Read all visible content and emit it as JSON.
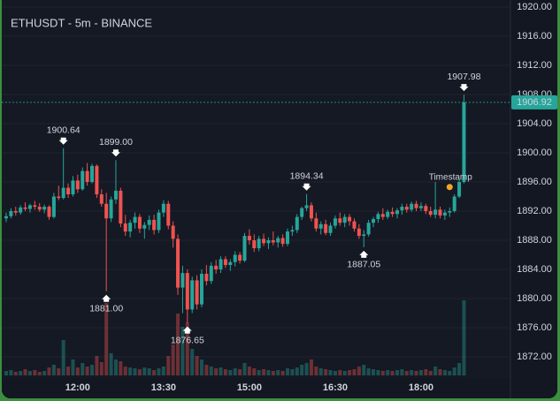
{
  "chart_data": {
    "type": "candlestick",
    "title": "ETHUSDT - 5m - BINANCE",
    "up_color": "#26a69a",
    "down_color": "#ef5350",
    "grid": true,
    "ylim": [
      1871,
      1921
    ],
    "yticks": [
      {
        "value": 1872,
        "label": "1872.00"
      },
      {
        "value": 1876,
        "label": "1876.00"
      },
      {
        "value": 1880,
        "label": "1880.00"
      },
      {
        "value": 1884,
        "label": "1884.00"
      },
      {
        "value": 1888,
        "label": "1888.00"
      },
      {
        "value": 1892,
        "label": "1892.00"
      },
      {
        "value": 1896,
        "label": "1896.00"
      },
      {
        "value": 1900,
        "label": "1900.00"
      },
      {
        "value": 1904,
        "label": "1904.00"
      },
      {
        "value": 1908,
        "label": "1908.00"
      },
      {
        "value": 1912,
        "label": "1912.00"
      },
      {
        "value": 1916,
        "label": "1916.00"
      },
      {
        "value": 1920,
        "label": "1920.00"
      }
    ],
    "categories": [
      null,
      null,
      null,
      null,
      null,
      null,
      null,
      null,
      null,
      null,
      null,
      null,
      null,
      null,
      null,
      "12:00",
      null,
      null,
      null,
      null,
      null,
      null,
      null,
      null,
      null,
      null,
      null,
      null,
      null,
      null,
      null,
      null,
      null,
      "13:30",
      null,
      null,
      null,
      null,
      null,
      null,
      null,
      null,
      null,
      null,
      null,
      null,
      null,
      null,
      null,
      null,
      null,
      "15:00",
      null,
      null,
      null,
      null,
      null,
      null,
      null,
      null,
      null,
      null,
      null,
      null,
      null,
      null,
      null,
      null,
      null,
      "16:30",
      null,
      null,
      null,
      null,
      null,
      null,
      null,
      null,
      null,
      null,
      null,
      null,
      null,
      null,
      null,
      null,
      null,
      "18:00",
      null,
      null,
      null,
      null,
      null,
      null,
      null,
      null,
      null
    ],
    "open": [
      1891.0,
      1891.3,
      1892.0,
      1891.8,
      1892.5,
      1892.3,
      1892.8,
      1892.6,
      1892.2,
      1892.6,
      1891.2,
      1894.0,
      1893.8,
      1895.2,
      1894.3,
      1896.2,
      1895.0,
      1897.5,
      1896.0,
      1898.2,
      1894.3,
      1893.0,
      1891.0,
      1893.6,
      1894.8,
      1890.3,
      1889.2,
      1890.4,
      1891.2,
      1889.6,
      1890.1,
      1890.8,
      1889.4,
      1891.8,
      1893.0,
      1890.0,
      1888.2,
      1881.5,
      1883.5,
      1878.5,
      1882.5,
      1879.2,
      1883.4,
      1882.4,
      1884.5,
      1884.0,
      1885.4,
      1884.6,
      1885.0,
      1886.0,
      1885.2,
      1888.6,
      1888.0,
      1886.9,
      1888.2,
      1887.6,
      1888.0,
      1887.7,
      1888.3,
      1887.5,
      1889.2,
      1889.4,
      1891.2,
      1892.4,
      1892.8,
      1891.0,
      1889.6,
      1890.2,
      1889.0,
      1890.0,
      1891.0,
      1890.4,
      1891.2,
      1890.6,
      1889.6,
      1888.6,
      1888.8,
      1890.4,
      1890.9,
      1891.6,
      1891.2,
      1891.9,
      1891.6,
      1892.1,
      1892.6,
      1892.2,
      1893.0,
      1892.4,
      1892.7,
      1892.0,
      1891.5,
      1892.2,
      1891.4,
      1891.8,
      1892.0,
      1894.0,
      1896.0
    ],
    "high": [
      1891.8,
      1892.4,
      1892.6,
      1892.8,
      1893.2,
      1893.0,
      1893.4,
      1893.1,
      1892.9,
      1892.8,
      1894.5,
      1895.5,
      1900.64,
      1895.8,
      1896.8,
      1897.0,
      1898.0,
      1898.6,
      1898.5,
      1898.4,
      1895.0,
      1894.5,
      1894.0,
      1899.0,
      1895.2,
      1891.5,
      1890.8,
      1891.8,
      1891.6,
      1890.5,
      1891.4,
      1891.5,
      1892.2,
      1893.5,
      1893.4,
      1890.6,
      1888.8,
      1884.5,
      1884.0,
      1883.0,
      1883.2,
      1884.0,
      1884.6,
      1885.0,
      1885.3,
      1885.8,
      1885.8,
      1885.4,
      1886.5,
      1886.4,
      1889.0,
      1889.5,
      1888.8,
      1888.6,
      1888.9,
      1888.4,
      1889.2,
      1888.6,
      1888.8,
      1889.6,
      1890.0,
      1891.6,
      1892.6,
      1894.34,
      1893.2,
      1891.8,
      1890.6,
      1890.8,
      1890.4,
      1891.4,
      1891.8,
      1891.6,
      1891.6,
      1891.0,
      1890.2,
      1889.4,
      1890.8,
      1891.2,
      1891.9,
      1892.4,
      1892.2,
      1892.5,
      1892.4,
      1893.0,
      1893.0,
      1893.3,
      1893.4,
      1893.2,
      1893.0,
      1892.6,
      1896.0,
      1892.6,
      1892.2,
      1892.5,
      1894.3,
      1896.4,
      1907.98
    ],
    "low": [
      1890.5,
      1891.0,
      1891.4,
      1891.5,
      1892.0,
      1891.8,
      1892.2,
      1891.9,
      1891.7,
      1890.8,
      1891.0,
      1893.5,
      1893.6,
      1893.8,
      1894.0,
      1894.5,
      1894.8,
      1895.5,
      1895.8,
      1893.8,
      1892.6,
      1881.0,
      1890.5,
      1893.0,
      1889.8,
      1888.6,
      1888.4,
      1889.6,
      1889.0,
      1888.2,
      1889.4,
      1888.8,
      1889.0,
      1891.2,
      1889.5,
      1887.0,
      1880.5,
      1878.0,
      1876.65,
      1878.0,
      1878.5,
      1878.8,
      1881.8,
      1882.0,
      1883.4,
      1883.5,
      1884.2,
      1883.8,
      1884.4,
      1884.8,
      1885.0,
      1887.4,
      1886.4,
      1886.5,
      1887.2,
      1886.8,
      1887.3,
      1887.0,
      1887.1,
      1887.2,
      1888.6,
      1889.0,
      1890.8,
      1892.0,
      1890.6,
      1889.2,
      1888.8,
      1888.7,
      1888.6,
      1889.6,
      1890.0,
      1889.8,
      1890.0,
      1889.2,
      1888.2,
      1887.05,
      1888.5,
      1889.8,
      1890.4,
      1890.8,
      1890.9,
      1891.2,
      1891.0,
      1891.5,
      1891.8,
      1891.9,
      1892.0,
      1892.0,
      1891.6,
      1891.2,
      1891.0,
      1891.0,
      1890.8,
      1891.2,
      1891.8,
      1893.8,
      1895.8
    ],
    "close": [
      1891.3,
      1892.0,
      1891.8,
      1892.5,
      1892.3,
      1892.8,
      1892.6,
      1892.2,
      1892.6,
      1891.2,
      1894.0,
      1893.8,
      1895.2,
      1894.3,
      1896.2,
      1895.0,
      1897.5,
      1896.0,
      1898.2,
      1894.3,
      1893.0,
      1891.0,
      1893.6,
      1894.8,
      1890.3,
      1889.2,
      1890.4,
      1891.2,
      1889.6,
      1890.1,
      1890.8,
      1889.4,
      1891.8,
      1893.0,
      1890.0,
      1888.2,
      1881.5,
      1883.5,
      1878.5,
      1882.5,
      1879.2,
      1883.4,
      1882.4,
      1884.5,
      1884.0,
      1885.4,
      1884.6,
      1885.0,
      1886.0,
      1885.2,
      1888.6,
      1888.0,
      1886.9,
      1888.2,
      1887.6,
      1888.0,
      1887.7,
      1888.3,
      1887.5,
      1889.2,
      1889.4,
      1891.2,
      1892.4,
      1892.8,
      1891.0,
      1889.6,
      1890.2,
      1889.0,
      1890.0,
      1891.0,
      1890.4,
      1891.2,
      1890.6,
      1889.6,
      1888.6,
      1888.8,
      1890.4,
      1890.9,
      1891.6,
      1891.2,
      1891.9,
      1891.6,
      1892.1,
      1892.6,
      1892.2,
      1893.0,
      1892.4,
      1892.7,
      1892.0,
      1891.5,
      1892.2,
      1891.4,
      1891.8,
      1892.0,
      1894.0,
      1896.0,
      1906.92
    ],
    "volume": [
      5,
      6,
      4,
      5,
      7,
      5,
      6,
      4,
      5,
      9,
      12,
      8,
      40,
      10,
      18,
      9,
      14,
      10,
      12,
      22,
      15,
      82,
      25,
      18,
      16,
      10,
      9,
      8,
      7,
      9,
      8,
      6,
      8,
      10,
      22,
      35,
      70,
      55,
      60,
      30,
      22,
      18,
      12,
      10,
      8,
      9,
      7,
      6,
      8,
      7,
      14,
      10,
      8,
      6,
      7,
      6,
      5,
      6,
      5,
      8,
      7,
      9,
      12,
      14,
      18,
      10,
      8,
      7,
      6,
      5,
      6,
      5,
      6,
      7,
      10,
      12,
      8,
      7,
      6,
      5,
      6,
      5,
      6,
      7,
      5,
      6,
      5,
      6,
      7,
      5,
      10,
      7,
      6,
      5,
      9,
      14,
      85
    ],
    "high_labels": [
      null,
      null,
      null,
      null,
      null,
      null,
      null,
      null,
      null,
      null,
      null,
      null,
      "1900.64",
      null,
      null,
      null,
      null,
      null,
      null,
      null,
      null,
      null,
      null,
      "1899.00",
      null,
      null,
      null,
      null,
      null,
      null,
      null,
      null,
      null,
      null,
      null,
      null,
      null,
      null,
      null,
      null,
      null,
      null,
      null,
      null,
      null,
      null,
      null,
      null,
      null,
      null,
      null,
      null,
      null,
      null,
      null,
      null,
      null,
      null,
      null,
      null,
      null,
      null,
      null,
      "1894.34",
      null,
      null,
      null,
      null,
      null,
      null,
      null,
      null,
      null,
      null,
      null,
      null,
      null,
      null,
      null,
      null,
      null,
      null,
      null,
      null,
      null,
      null,
      null,
      null,
      null,
      null,
      null,
      null,
      null,
      null,
      null,
      null,
      "1907.98"
    ],
    "low_labels": [
      null,
      null,
      null,
      null,
      null,
      null,
      null,
      null,
      null,
      null,
      null,
      null,
      null,
      null,
      null,
      null,
      null,
      null,
      null,
      null,
      null,
      "1881.00",
      null,
      null,
      null,
      null,
      null,
      null,
      null,
      null,
      null,
      null,
      null,
      null,
      null,
      null,
      null,
      null,
      "1876.65",
      null,
      null,
      null,
      null,
      null,
      null,
      null,
      null,
      null,
      null,
      null,
      null,
      null,
      null,
      null,
      null,
      null,
      null,
      null,
      null,
      null,
      null,
      null,
      null,
      null,
      null,
      null,
      null,
      null,
      null,
      null,
      null,
      null,
      null,
      null,
      null,
      "1887.05",
      null,
      null,
      null,
      null,
      null,
      null,
      null,
      null,
      null,
      null,
      null,
      null,
      null,
      null,
      null,
      null,
      null,
      null,
      null,
      null,
      null
    ],
    "timestamp_marker": {
      "label": "Timestamp",
      "x": 93,
      "value": 1895.3,
      "color": "#f5a623"
    },
    "last_price_color": "#26a69a"
  }
}
